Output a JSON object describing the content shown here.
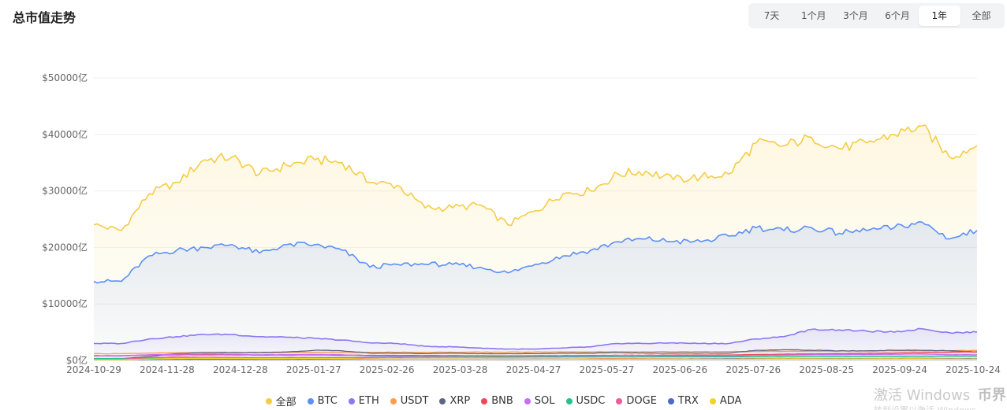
{
  "header": {
    "title": "总市值走势"
  },
  "ranges": [
    {
      "label": "7天",
      "active": false
    },
    {
      "label": "1个月",
      "active": false
    },
    {
      "label": "3个月",
      "active": false
    },
    {
      "label": "6个月",
      "active": false
    },
    {
      "label": "1年",
      "active": true
    },
    {
      "label": "全部",
      "active": false
    }
  ],
  "watermark": {
    "text": "激活 Windows",
    "logo": "币界网",
    "subtext": "转到设置以激活 Windows"
  },
  "chart_data": {
    "type": "area",
    "x_ticks": [
      "2024-10-29",
      "2024-11-28",
      "2024-12-28",
      "2025-01-27",
      "2025-02-26",
      "2025-03-28",
      "2025-04-27",
      "2025-05-27",
      "2025-06-26",
      "2025-07-26",
      "2025-08-25",
      "2025-09-24",
      "2025-10-24"
    ],
    "y_ticks": [
      "$0亿",
      "$10000亿",
      "$20000亿",
      "$30000亿",
      "$40000亿",
      "$50000亿"
    ],
    "ylim": [
      0,
      50000
    ],
    "grid": true,
    "legend_position": "bottom",
    "series": [
      {
        "name": "全部",
        "color": "#f5cd45",
        "values": [
          24000,
          23000,
          29500,
          31500,
          35500,
          36000,
          33000,
          34500,
          35500,
          35000,
          31500,
          31000,
          27000,
          27000,
          27500,
          24000,
          26500,
          29500,
          30000,
          33000,
          33500,
          32000,
          32500,
          33000,
          38500,
          38000,
          39500,
          37500,
          38500,
          40000,
          41500,
          36000,
          38000
        ]
      },
      {
        "name": "BTC",
        "color": "#5b8ff9",
        "values": [
          14000,
          14000,
          18500,
          19500,
          20000,
          20500,
          19000,
          20500,
          20500,
          19500,
          16500,
          17000,
          17000,
          17000,
          16500,
          15500,
          17000,
          18500,
          19500,
          21000,
          21500,
          21000,
          21000,
          22000,
          23500,
          23000,
          23500,
          22500,
          23000,
          23500,
          24500,
          21500,
          23000
        ]
      },
      {
        "name": "ETH",
        "color": "#8c78f0",
        "values": [
          3000,
          3000,
          3800,
          4200,
          4600,
          4600,
          4200,
          4100,
          3900,
          3600,
          3100,
          3000,
          2500,
          2400,
          2200,
          2000,
          2000,
          2200,
          2400,
          3000,
          3000,
          3100,
          3000,
          3000,
          3800,
          4200,
          5500,
          5400,
          5200,
          5000,
          5600,
          4900,
          5000
        ]
      },
      {
        "name": "USDT",
        "color": "#ff9d4d",
        "values": [
          1200,
          1200,
          1300,
          1350,
          1400,
          1400,
          1400,
          1400,
          1420,
          1440,
          1450,
          1450,
          1450,
          1460,
          1470,
          1480,
          1500,
          1510,
          1520,
          1530,
          1540,
          1550,
          1560,
          1580,
          1600,
          1620,
          1640,
          1660,
          1680,
          1700,
          1720,
          1740,
          1760
        ]
      },
      {
        "name": "XRP",
        "color": "#5d6680",
        "values": [
          300,
          300,
          700,
          1200,
          1400,
          1400,
          1400,
          1500,
          1800,
          1700,
          1300,
          1300,
          1200,
          1300,
          1200,
          1200,
          1200,
          1300,
          1300,
          1400,
          1300,
          1300,
          1300,
          1300,
          1800,
          1900,
          1800,
          1700,
          1700,
          1800,
          1800,
          1700,
          1500
        ]
      },
      {
        "name": "BNB",
        "color": "#f0465a",
        "values": [
          850,
          850,
          950,
          1000,
          1000,
          1000,
          950,
          950,
          980,
          940,
          900,
          880,
          860,
          850,
          830,
          820,
          830,
          850,
          880,
          900,
          920,
          940,
          950,
          960,
          1050,
          1100,
          1150,
          1200,
          1250,
          1300,
          1400,
          1450,
          1550
        ]
      },
      {
        "name": "SOL",
        "color": "#c76ef2",
        "values": [
          800,
          800,
          1000,
          1100,
          1150,
          1100,
          1000,
          1000,
          1050,
          1000,
          800,
          700,
          650,
          650,
          600,
          600,
          650,
          750,
          800,
          850,
          850,
          800,
          780,
          780,
          900,
          950,
          1000,
          1050,
          1050,
          1100,
          1150,
          1000,
          1000
        ]
      },
      {
        "name": "USDC",
        "color": "#1ec48c",
        "values": [
          340,
          340,
          360,
          380,
          400,
          420,
          440,
          460,
          480,
          500,
          520,
          540,
          560,
          580,
          590,
          600,
          610,
          620,
          630,
          640,
          640,
          650,
          650,
          650,
          660,
          680,
          700,
          720,
          730,
          740,
          750,
          760,
          760
        ]
      },
      {
        "name": "DOGE",
        "color": "#f25a9b",
        "values": [
          200,
          200,
          500,
          600,
          550,
          500,
          450,
          500,
          480,
          400,
          300,
          250,
          220,
          230,
          220,
          200,
          220,
          250,
          300,
          330,
          300,
          280,
          270,
          260,
          330,
          350,
          330,
          320,
          330,
          350,
          380,
          300,
          280
        ]
      },
      {
        "name": "TRX",
        "color": "#4a6bc8",
        "values": [
          150,
          150,
          180,
          200,
          210,
          200,
          190,
          200,
          210,
          210,
          200,
          200,
          210,
          210,
          215,
          220,
          230,
          240,
          250,
          260,
          270,
          280,
          290,
          300,
          310,
          320,
          320,
          320,
          315,
          310,
          310,
          300,
          300
        ]
      },
      {
        "name": "ADA",
        "color": "#f0d525",
        "values": [
          120,
          120,
          250,
          350,
          380,
          350,
          320,
          330,
          340,
          320,
          250,
          230,
          220,
          230,
          220,
          200,
          210,
          230,
          250,
          270,
          260,
          250,
          240,
          230,
          280,
          300,
          290,
          280,
          290,
          300,
          310,
          260,
          240
        ]
      }
    ]
  }
}
